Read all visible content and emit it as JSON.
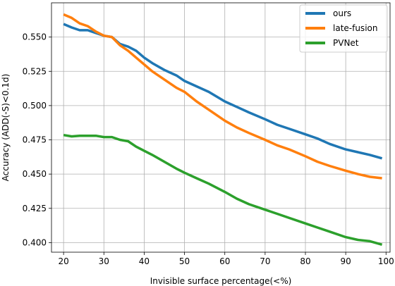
{
  "chart_data": {
    "type": "line",
    "xlabel": "Invisible surface percentage(<%)",
    "ylabel": "Accuracy (ADD(-S)<0.1d)",
    "xlim": [
      17,
      101
    ],
    "ylim": [
      0.393,
      0.575
    ],
    "xticks": [
      20,
      30,
      40,
      50,
      60,
      70,
      80,
      90,
      100
    ],
    "yticks": [
      0.4,
      0.425,
      0.45,
      0.475,
      0.5,
      0.525,
      0.55
    ],
    "xtick_labels": [
      "20",
      "30",
      "40",
      "50",
      "60",
      "70",
      "80",
      "90",
      "100"
    ],
    "ytick_labels": [
      "0.400",
      "0.425",
      "0.450",
      "0.475",
      "0.500",
      "0.525",
      "0.550"
    ],
    "grid": true,
    "legend_position": "top-right",
    "series": [
      {
        "name": "ours",
        "color": "#1f77b4",
        "x": [
          20,
          22,
          24,
          26,
          28,
          30,
          32,
          34,
          36,
          38,
          40,
          42,
          45,
          48,
          50,
          53,
          56,
          60,
          63,
          66,
          70,
          73,
          76,
          80,
          83,
          86,
          90,
          93,
          96,
          99
        ],
        "y": [
          0.5595,
          0.557,
          0.555,
          0.555,
          0.553,
          0.551,
          0.55,
          0.545,
          0.543,
          0.54,
          0.535,
          0.531,
          0.526,
          0.522,
          0.518,
          0.514,
          0.51,
          0.503,
          0.499,
          0.495,
          0.49,
          0.486,
          0.483,
          0.479,
          0.476,
          0.472,
          0.468,
          0.466,
          0.464,
          0.4615
        ]
      },
      {
        "name": "late-fusion",
        "color": "#ff7f0e",
        "x": [
          20,
          22,
          24,
          26,
          28,
          30,
          32,
          34,
          36,
          38,
          40,
          42,
          45,
          48,
          50,
          53,
          56,
          60,
          63,
          66,
          70,
          73,
          76,
          80,
          83,
          86,
          90,
          93,
          96,
          99
        ],
        "y": [
          0.5665,
          0.564,
          0.56,
          0.558,
          0.554,
          0.551,
          0.55,
          0.544,
          0.54,
          0.535,
          0.53,
          0.525,
          0.519,
          0.513,
          0.51,
          0.503,
          0.497,
          0.489,
          0.484,
          0.48,
          0.475,
          0.471,
          0.468,
          0.463,
          0.459,
          0.456,
          0.4525,
          0.45,
          0.448,
          0.447
        ]
      },
      {
        "name": "PVNet",
        "color": "#2ca02c",
        "x": [
          20,
          22,
          24,
          26,
          28,
          30,
          32,
          34,
          36,
          38,
          40,
          42,
          45,
          48,
          50,
          53,
          56,
          60,
          63,
          66,
          70,
          73,
          76,
          80,
          83,
          86,
          90,
          93,
          96,
          99
        ],
        "y": [
          0.4785,
          0.4775,
          0.478,
          0.478,
          0.478,
          0.477,
          0.477,
          0.475,
          0.474,
          0.47,
          0.467,
          0.464,
          0.459,
          0.454,
          0.451,
          0.447,
          0.443,
          0.437,
          0.432,
          0.428,
          0.424,
          0.421,
          0.418,
          0.414,
          0.411,
          0.408,
          0.404,
          0.402,
          0.401,
          0.3985
        ]
      }
    ]
  }
}
